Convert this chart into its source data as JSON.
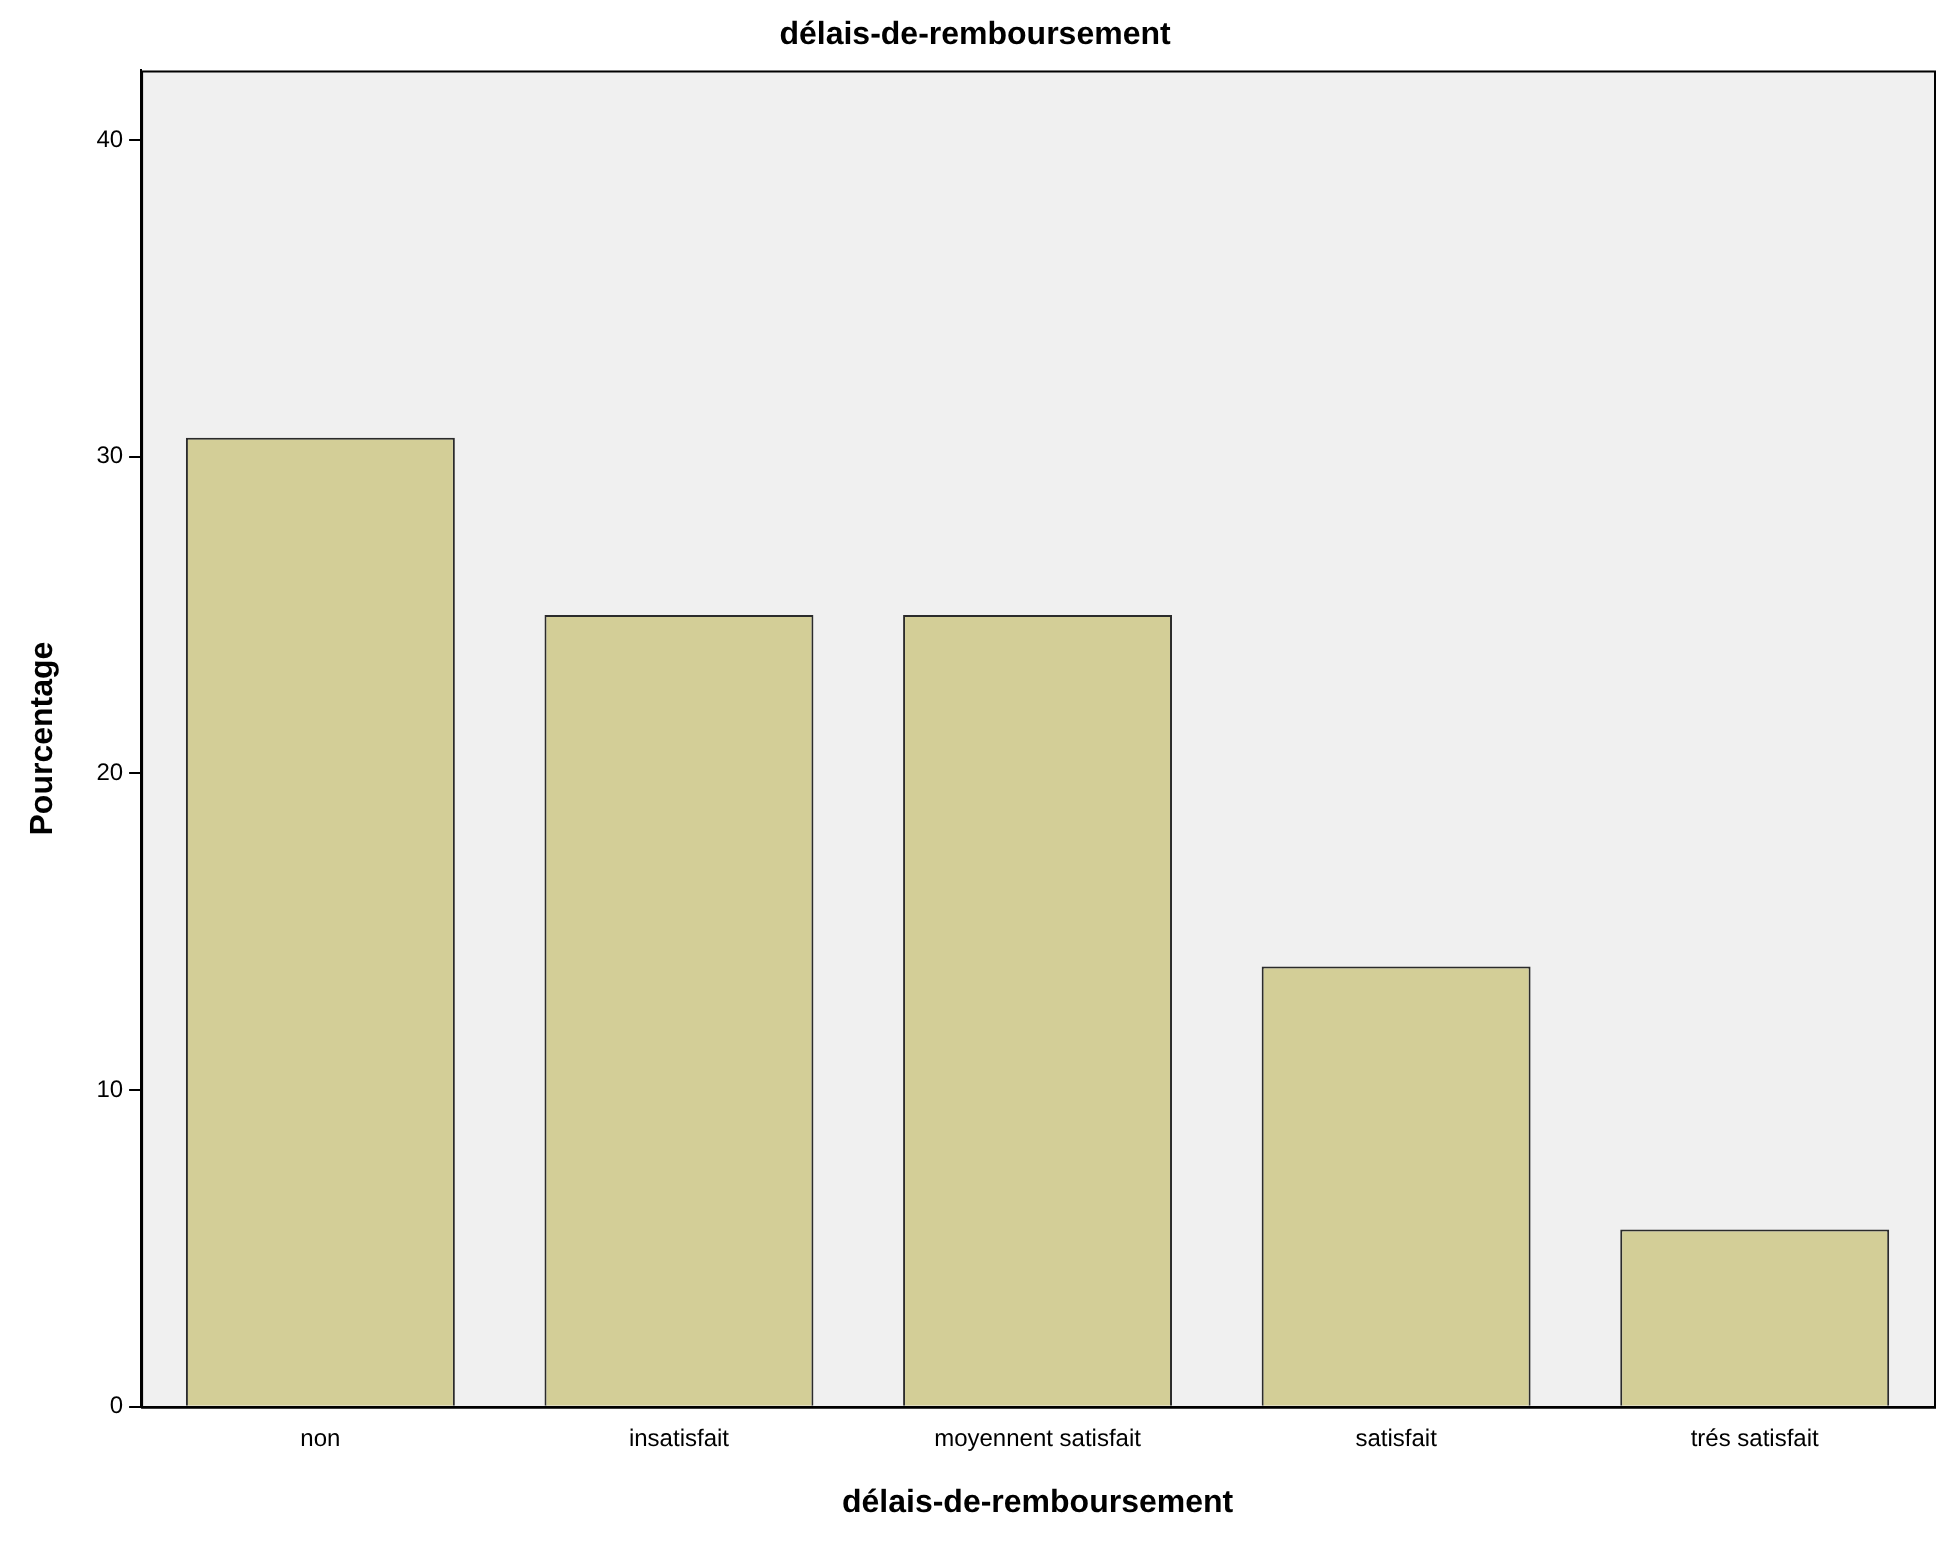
{
  "chart_data": {
    "type": "bar",
    "title": "délais-de-remboursement",
    "xlabel": "délais-de-remboursement",
    "ylabel": "Pourcentage",
    "categories": [
      "non",
      "insatisfait",
      "moyennent satisfait",
      "satisfait",
      "trés satisfait"
    ],
    "values": [
      30.6,
      25.0,
      25.0,
      13.9,
      5.6
    ],
    "color": "#d3ce97",
    "ylim": [
      0,
      42.2
    ],
    "yticks": [
      0,
      10,
      20,
      30,
      40
    ],
    "grid": false,
    "legend": false
  }
}
